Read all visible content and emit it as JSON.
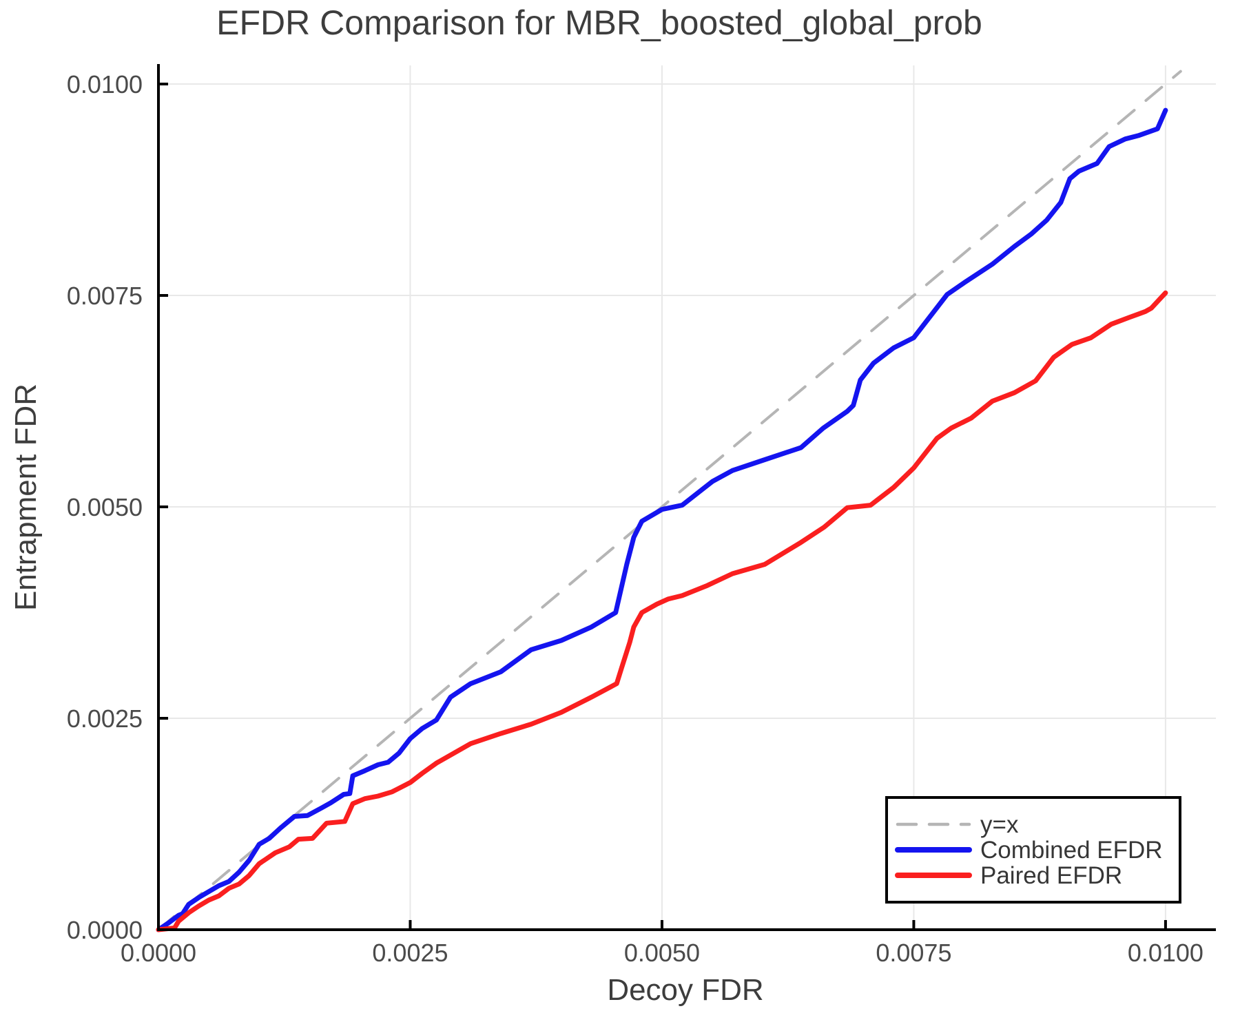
{
  "title": "EFDR Comparison for MBR_boosted_global_prob",
  "axes": {
    "x_label": "Decoy FDR",
    "y_label": "Entrapment FDR",
    "x_ticks": [
      {
        "value": 0.0,
        "label": "0.0000"
      },
      {
        "value": 0.0025,
        "label": "0.0025"
      },
      {
        "value": 0.005,
        "label": "0.0050"
      },
      {
        "value": 0.0075,
        "label": "0.0075"
      },
      {
        "value": 0.01,
        "label": "0.0100"
      }
    ],
    "y_ticks": [
      {
        "value": 0.0,
        "label": "0.0000"
      },
      {
        "value": 0.0025,
        "label": "0.0025"
      },
      {
        "value": 0.005,
        "label": "0.0050"
      },
      {
        "value": 0.0075,
        "label": "0.0075"
      },
      {
        "value": 0.01,
        "label": "0.0100"
      }
    ]
  },
  "legend": {
    "items": [
      {
        "label": "y=x",
        "color": "#b5b5b5",
        "dashed": true
      },
      {
        "label": "Combined EFDR",
        "color": "#1414ef",
        "dashed": false
      },
      {
        "label": "Paired EFDR",
        "color": "#fa1f1f",
        "dashed": false
      }
    ]
  },
  "colors": {
    "grid": "#e8e8e8",
    "spine": "#000000",
    "reference": "#b5b5b5",
    "combined": "#1414ef",
    "paired": "#fa1f1f"
  },
  "chart_data": {
    "type": "line",
    "title": "EFDR Comparison for MBR_boosted_global_prob",
    "xlabel": "Decoy FDR",
    "ylabel": "Entrapment FDR",
    "xlim": [
      0.0,
      0.0105
    ],
    "ylim": [
      0.0,
      0.01022
    ],
    "grid": true,
    "legend_position": "lower right",
    "series": [
      {
        "name": "y=x",
        "style": "dashed",
        "color": "#b5b5b5",
        "points": [
          [
            0.0,
            0.0
          ],
          [
            0.01015,
            0.01015
          ]
        ]
      },
      {
        "name": "Combined EFDR",
        "style": "solid",
        "color": "#1414ef",
        "points": [
          [
            0.0,
            0.0
          ],
          [
            0.0001,
            8e-05
          ],
          [
            0.0002,
            0.00017
          ],
          [
            0.00024,
            0.00019
          ],
          [
            0.0003,
            0.0003
          ],
          [
            0.0004,
            0.00038
          ],
          [
            0.00047,
            0.00043
          ],
          [
            0.0006,
            0.00052
          ],
          [
            0.0007,
            0.00057
          ],
          [
            0.0008,
            0.00068
          ],
          [
            0.0009,
            0.00082
          ],
          [
            0.001,
            0.00101
          ],
          [
            0.0011,
            0.00108
          ],
          [
            0.00121,
            0.0012
          ],
          [
            0.00135,
            0.00134
          ],
          [
            0.00148,
            0.00135
          ],
          [
            0.00162,
            0.00144
          ],
          [
            0.00171,
            0.0015
          ],
          [
            0.00184,
            0.0016
          ],
          [
            0.0019,
            0.00161
          ],
          [
            0.00193,
            0.00182
          ],
          [
            0.00205,
            0.00188
          ],
          [
            0.00218,
            0.00195
          ],
          [
            0.00228,
            0.00198
          ],
          [
            0.00239,
            0.00209
          ],
          [
            0.0025,
            0.00226
          ],
          [
            0.00262,
            0.00238
          ],
          [
            0.00276,
            0.00248
          ],
          [
            0.0029,
            0.00275
          ],
          [
            0.0031,
            0.00291
          ],
          [
            0.0034,
            0.00305
          ],
          [
            0.0037,
            0.00331
          ],
          [
            0.004,
            0.00342
          ],
          [
            0.0043,
            0.00358
          ],
          [
            0.00454,
            0.00375
          ],
          [
            0.00465,
            0.00432
          ],
          [
            0.00472,
            0.00464
          ],
          [
            0.0048,
            0.00483
          ],
          [
            0.005,
            0.00497
          ],
          [
            0.0052,
            0.00502
          ],
          [
            0.0055,
            0.0053
          ],
          [
            0.0057,
            0.00543
          ],
          [
            0.006,
            0.00555
          ],
          [
            0.00638,
            0.0057
          ],
          [
            0.0066,
            0.00593
          ],
          [
            0.00684,
            0.00613
          ],
          [
            0.0069,
            0.0062
          ],
          [
            0.00697,
            0.0065
          ],
          [
            0.0071,
            0.0067
          ],
          [
            0.0073,
            0.00688
          ],
          [
            0.0075,
            0.007
          ],
          [
            0.00783,
            0.00751
          ],
          [
            0.008,
            0.00765
          ],
          [
            0.00828,
            0.00787
          ],
          [
            0.0085,
            0.00808
          ],
          [
            0.00867,
            0.00823
          ],
          [
            0.00882,
            0.00839
          ],
          [
            0.00896,
            0.0086
          ],
          [
            0.00905,
            0.00888
          ],
          [
            0.00914,
            0.00897
          ],
          [
            0.00932,
            0.00906
          ],
          [
            0.00944,
            0.00926
          ],
          [
            0.0096,
            0.00935
          ],
          [
            0.00973,
            0.00939
          ],
          [
            0.00992,
            0.00947
          ],
          [
            0.01,
            0.00969
          ]
        ]
      },
      {
        "name": "Paired EFDR",
        "style": "solid",
        "color": "#fa1f1f",
        "points": [
          [
            0.0,
            0.0
          ],
          [
            0.00016,
            2e-05
          ],
          [
            0.0002,
            0.0001
          ],
          [
            0.0003,
            0.0002
          ],
          [
            0.0004,
            0.00028
          ],
          [
            0.0005,
            0.00035
          ],
          [
            0.0006,
            0.0004
          ],
          [
            0.0007,
            0.00049
          ],
          [
            0.0008,
            0.00054
          ],
          [
            0.0009,
            0.00064
          ],
          [
            0.001,
            0.00078
          ],
          [
            0.00116,
            0.00091
          ],
          [
            0.0013,
            0.00098
          ],
          [
            0.00139,
            0.00107
          ],
          [
            0.00153,
            0.00108
          ],
          [
            0.00167,
            0.00126
          ],
          [
            0.00185,
            0.00128
          ],
          [
            0.00193,
            0.00149
          ],
          [
            0.00205,
            0.00155
          ],
          [
            0.00218,
            0.00158
          ],
          [
            0.00232,
            0.00163
          ],
          [
            0.0025,
            0.00174
          ],
          [
            0.00262,
            0.00185
          ],
          [
            0.00276,
            0.00197
          ],
          [
            0.0031,
            0.0022
          ],
          [
            0.0034,
            0.00232
          ],
          [
            0.0037,
            0.00243
          ],
          [
            0.004,
            0.00257
          ],
          [
            0.0043,
            0.00275
          ],
          [
            0.00455,
            0.00291
          ],
          [
            0.0046,
            0.0031
          ],
          [
            0.00468,
            0.0034
          ],
          [
            0.00472,
            0.00358
          ],
          [
            0.0048,
            0.00375
          ],
          [
            0.00495,
            0.00385
          ],
          [
            0.00506,
            0.00391
          ],
          [
            0.0052,
            0.00395
          ],
          [
            0.00545,
            0.00407
          ],
          [
            0.0057,
            0.00421
          ],
          [
            0.00602,
            0.00432
          ],
          [
            0.00638,
            0.00458
          ],
          [
            0.00661,
            0.00476
          ],
          [
            0.00684,
            0.00499
          ],
          [
            0.00707,
            0.00502
          ],
          [
            0.0073,
            0.00523
          ],
          [
            0.0075,
            0.00546
          ],
          [
            0.00773,
            0.00581
          ],
          [
            0.00787,
            0.00593
          ],
          [
            0.00807,
            0.00605
          ],
          [
            0.00828,
            0.00625
          ],
          [
            0.0085,
            0.00635
          ],
          [
            0.00871,
            0.00649
          ],
          [
            0.00889,
            0.00677
          ],
          [
            0.00907,
            0.00692
          ],
          [
            0.00926,
            0.007
          ],
          [
            0.00946,
            0.00716
          ],
          [
            0.00964,
            0.00724
          ],
          [
            0.0098,
            0.00731
          ],
          [
            0.00986,
            0.00735
          ],
          [
            0.00996,
            0.00748
          ],
          [
            0.01,
            0.00753
          ]
        ]
      }
    ]
  }
}
